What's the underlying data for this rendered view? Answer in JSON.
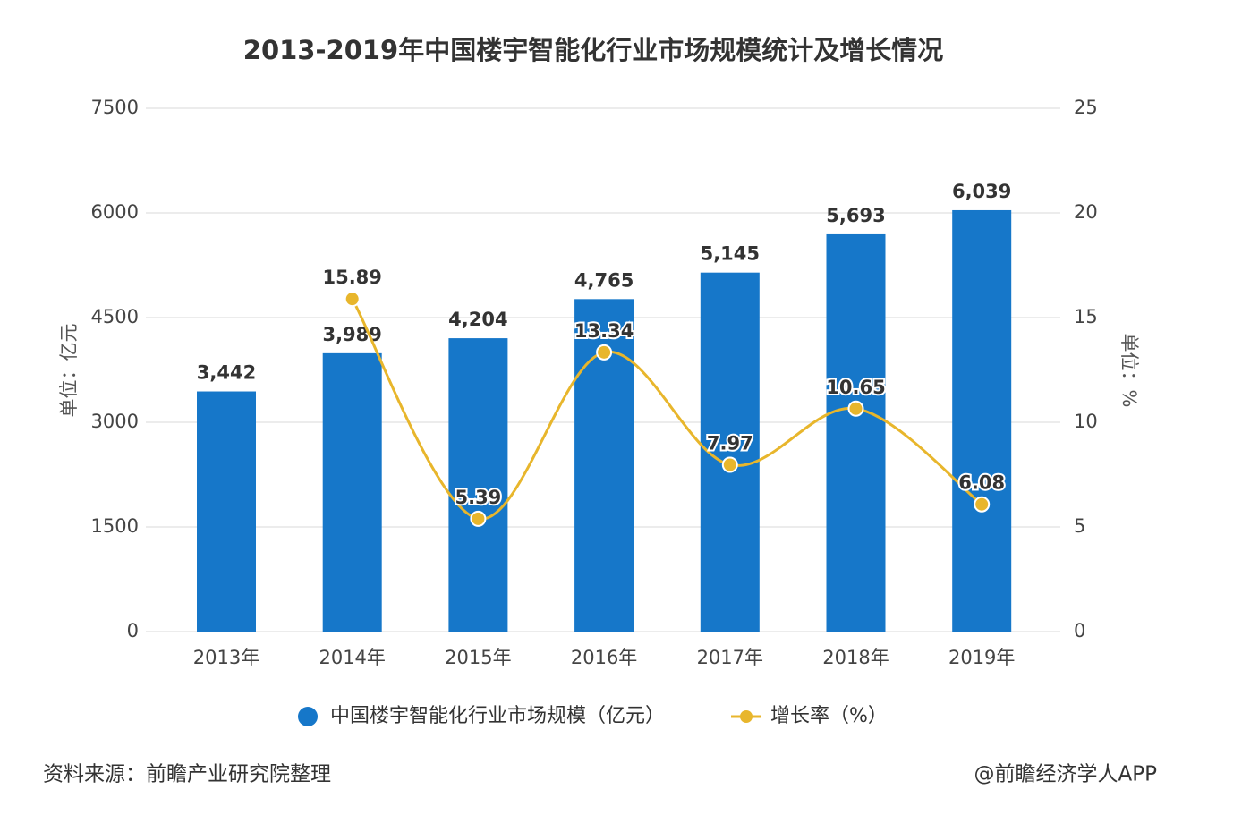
{
  "chart_data": {
    "type": "bar",
    "title": "2013-2019年中国楼宇智能化行业市场规模统计及增长情况",
    "categories": [
      "2013年",
      "2014年",
      "2015年",
      "2016年",
      "2017年",
      "2018年",
      "2019年"
    ],
    "series": [
      {
        "name": "中国楼宇智能化行业市场规模（亿元）",
        "type": "bar",
        "axis": "left",
        "color": "#1677c9",
        "values": [
          3442,
          3989,
          4204,
          4765,
          5145,
          5693,
          6039
        ],
        "labels": [
          "3,442",
          "3,989",
          "4,204",
          "4,765",
          "5,145",
          "5,693",
          "6,039"
        ]
      },
      {
        "name": "增长率（%）",
        "type": "line",
        "axis": "right",
        "color": "#e8b62c",
        "values": [
          null,
          15.89,
          5.39,
          13.34,
          7.97,
          10.65,
          6.08
        ],
        "labels": [
          "",
          "15.89",
          "5.39",
          "13.34",
          "7.97",
          "10.65",
          "6.08"
        ]
      }
    ],
    "y_left": {
      "label": "单位：亿元",
      "lim": [
        0,
        7500
      ],
      "ticks": [
        "0",
        "1500",
        "3000",
        "4500",
        "6000",
        "7500"
      ]
    },
    "y_right": {
      "label": "单位：%",
      "lim": [
        0,
        25
      ],
      "ticks": [
        "0",
        "5",
        "10",
        "15",
        "20",
        "25"
      ]
    },
    "grid": true,
    "legend_position": "bottom"
  },
  "footer": {
    "source": "资料来源：前瞻产业研究院整理",
    "credit": "@前瞻经济学人APP"
  }
}
